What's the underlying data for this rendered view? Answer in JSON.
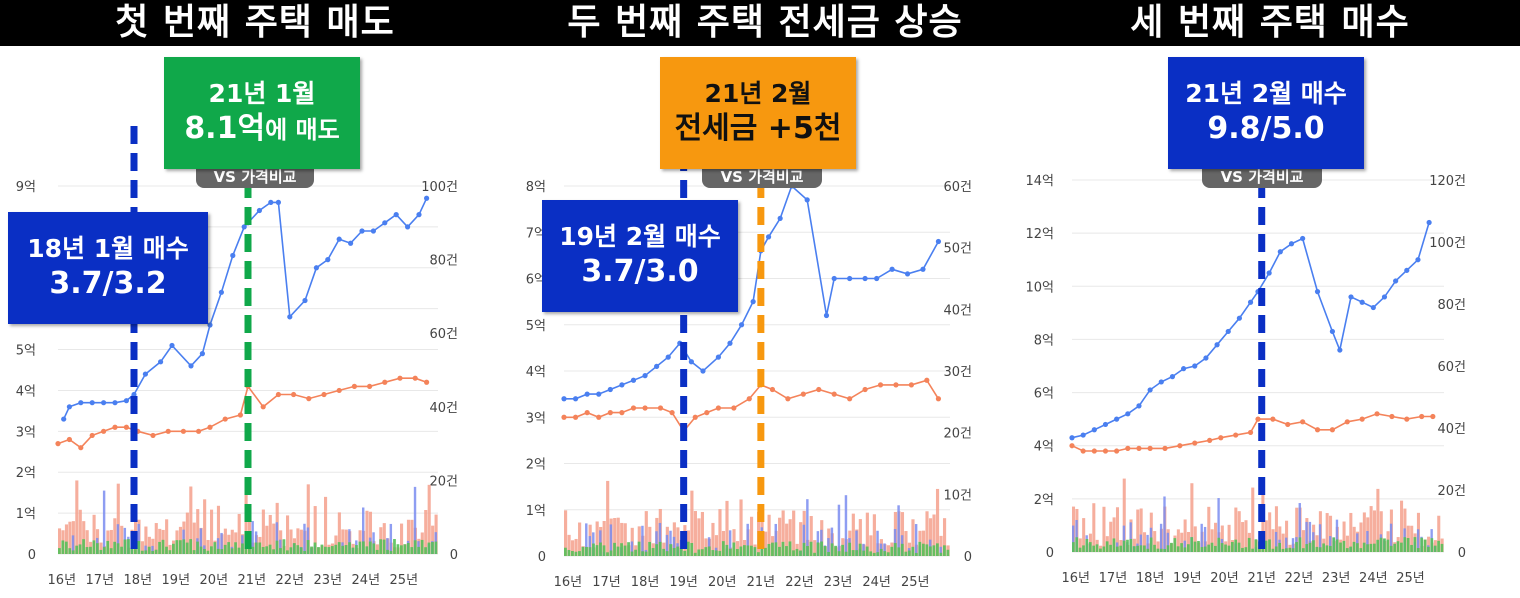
{
  "colors": {
    "title_bg": "#000000",
    "blue_box": "#0a2fc4",
    "green_box": "#10a84a",
    "orange_box": "#f7980f",
    "price_line": "#4a7ff0",
    "jeonse_line": "#f4835a",
    "vol_red": "#f4a08c",
    "vol_blue": "#7a8cf0",
    "vol_green": "#58c05a",
    "grid": "#e8e8e8"
  },
  "panels": [
    {
      "title": "첫 번째 주택 매도",
      "pill_text": "VS 가격비교",
      "callouts": [
        {
          "line1": "18년 1월 매수",
          "line2": "3.7/3.2",
          "line2_small": "",
          "color": "blue"
        },
        {
          "line1": "21년 1월",
          "line2": "8.1억",
          "line2_small": "에 매도",
          "color": "green"
        }
      ]
    },
    {
      "title": "두 번째 주택 전세금 상승",
      "pill_text": "VS 가격비교",
      "callouts": [
        {
          "line1": "19년 2월 매수",
          "line2": "3.7/3.0",
          "line2_small": "",
          "color": "blue"
        },
        {
          "line1": "21년 2월",
          "line2": "전세금 +5천",
          "line2_small": "",
          "color": "orange"
        }
      ]
    },
    {
      "title": "세 번째 주택 매수",
      "pill_text": "VS 가격비교",
      "callouts": [
        {
          "line1": "21년 2월 매수",
          "line2": "9.8/5.0",
          "line2_small": "",
          "color": "blue"
        }
      ]
    }
  ],
  "chart_data": [
    {
      "type": "line",
      "x_labels": [
        "16년",
        "17년",
        "18년",
        "19년",
        "20년",
        "21년",
        "22년",
        "23년",
        "24년",
        "25년"
      ],
      "y_left_ticks": [
        "0",
        "1억",
        "2억",
        "3억",
        "4억",
        "5억",
        "6억",
        "7억",
        "8억",
        "9억"
      ],
      "y_left_range": [
        0,
        9
      ],
      "y_right_ticks": [
        "0",
        "20건",
        "40건",
        "60건",
        "80건",
        "100건"
      ],
      "y_right_range": [
        0,
        100
      ],
      "markers": [
        {
          "x": 2018.0,
          "color": "blue"
        },
        {
          "x": 2021.0,
          "color": "green"
        }
      ],
      "series": [
        {
          "role": "price",
          "x": [
            2016.15,
            2016.3,
            2016.6,
            2016.9,
            2017.2,
            2017.5,
            2017.8,
            2018.0,
            2018.3,
            2018.7,
            2019.0,
            2019.5,
            2019.8,
            2020.0,
            2020.3,
            2020.6,
            2020.9,
            2021.0,
            2021.3,
            2021.6,
            2021.8,
            2022.1,
            2022.5,
            2022.8,
            2023.1,
            2023.4,
            2023.7,
            2024.0,
            2024.3,
            2024.6,
            2024.9,
            2025.2,
            2025.5,
            2025.7
          ],
          "y": [
            3.3,
            3.6,
            3.7,
            3.7,
            3.7,
            3.7,
            3.75,
            3.9,
            4.4,
            4.7,
            5.1,
            4.6,
            4.9,
            5.6,
            6.4,
            7.3,
            8.0,
            8.1,
            8.4,
            8.6,
            8.6,
            5.8,
            6.2,
            7.0,
            7.2,
            7.7,
            7.6,
            7.9,
            7.9,
            8.1,
            8.3,
            8.0,
            8.3,
            8.7
          ]
        },
        {
          "role": "jeonse",
          "x": [
            2016.0,
            2016.3,
            2016.6,
            2016.9,
            2017.2,
            2017.5,
            2017.8,
            2018.1,
            2018.5,
            2018.9,
            2019.3,
            2019.7,
            2020.0,
            2020.4,
            2020.8,
            2021.0,
            2021.4,
            2021.8,
            2022.2,
            2022.6,
            2023.0,
            2023.4,
            2023.8,
            2024.2,
            2024.6,
            2025.0,
            2025.4,
            2025.7
          ],
          "y": [
            2.7,
            2.8,
            2.6,
            2.9,
            3.0,
            3.1,
            3.1,
            3.0,
            2.9,
            3.0,
            3.0,
            3.0,
            3.1,
            3.3,
            3.4,
            4.1,
            3.6,
            3.9,
            3.9,
            3.8,
            3.9,
            4.0,
            4.1,
            4.1,
            4.2,
            4.3,
            4.3,
            4.2
          ]
        }
      ]
    },
    {
      "type": "line",
      "x_labels": [
        "16년",
        "17년",
        "18년",
        "19년",
        "20년",
        "21년",
        "22년",
        "23년",
        "24년",
        "25년"
      ],
      "y_left_ticks": [
        "0",
        "1억",
        "2억",
        "3억",
        "4억",
        "5억",
        "6억",
        "7억",
        "8억"
      ],
      "y_left_range": [
        0,
        8
      ],
      "y_right_ticks": [
        "0",
        "10건",
        "20건",
        "30건",
        "40건",
        "50건",
        "60건"
      ],
      "y_right_range": [
        0,
        60
      ],
      "markers": [
        {
          "x": 2019.1,
          "color": "blue"
        },
        {
          "x": 2021.1,
          "color": "orange"
        }
      ],
      "series": [
        {
          "role": "price",
          "x": [
            2016.0,
            2016.3,
            2016.6,
            2016.9,
            2017.2,
            2017.5,
            2017.8,
            2018.1,
            2018.4,
            2018.7,
            2019.0,
            2019.3,
            2019.6,
            2020.0,
            2020.3,
            2020.6,
            2020.9,
            2021.1,
            2021.3,
            2021.6,
            2021.9,
            2022.3,
            2022.8,
            2023.0,
            2023.4,
            2023.8,
            2024.1,
            2024.5,
            2024.9,
            2025.3,
            2025.7
          ],
          "y": [
            3.4,
            3.4,
            3.5,
            3.5,
            3.6,
            3.7,
            3.8,
            3.9,
            4.1,
            4.3,
            4.6,
            4.2,
            4.0,
            4.3,
            4.6,
            5.0,
            5.5,
            6.6,
            6.9,
            7.3,
            8.0,
            7.7,
            5.2,
            6.0,
            6.0,
            6.0,
            6.0,
            6.2,
            6.1,
            6.2,
            6.8
          ]
        },
        {
          "role": "jeonse",
          "x": [
            2016.0,
            2016.3,
            2016.6,
            2016.9,
            2017.2,
            2017.5,
            2017.8,
            2018.1,
            2018.5,
            2018.8,
            2019.1,
            2019.4,
            2019.7,
            2020.0,
            2020.4,
            2020.8,
            2021.1,
            2021.4,
            2021.8,
            2022.2,
            2022.6,
            2023.0,
            2023.4,
            2023.8,
            2024.2,
            2024.6,
            2025.0,
            2025.4,
            2025.7
          ],
          "y": [
            3.0,
            3.0,
            3.1,
            3.0,
            3.1,
            3.1,
            3.2,
            3.2,
            3.2,
            3.1,
            2.7,
            3.0,
            3.1,
            3.2,
            3.2,
            3.4,
            3.7,
            3.6,
            3.4,
            3.5,
            3.6,
            3.5,
            3.4,
            3.6,
            3.7,
            3.7,
            3.7,
            3.8,
            3.4
          ]
        }
      ]
    },
    {
      "type": "line",
      "x_labels": [
        "16년",
        "17년",
        "18년",
        "19년",
        "20년",
        "21년",
        "22년",
        "23년",
        "24년",
        "25년"
      ],
      "y_left_ticks": [
        "0",
        "2억",
        "4억",
        "6억",
        "8억",
        "10억",
        "12억",
        "14억"
      ],
      "y_left_range": [
        0,
        14
      ],
      "y_right_ticks": [
        "0",
        "20건",
        "40건",
        "60건",
        "80건",
        "100건",
        "120건"
      ],
      "y_right_range": [
        0,
        120
      ],
      "markers": [
        {
          "x": 2021.1,
          "color": "blue"
        }
      ],
      "series": [
        {
          "role": "price",
          "x": [
            2016.0,
            2016.3,
            2016.6,
            2016.9,
            2017.2,
            2017.5,
            2017.8,
            2018.1,
            2018.4,
            2018.7,
            2019.0,
            2019.3,
            2019.6,
            2019.9,
            2020.2,
            2020.5,
            2020.8,
            2021.0,
            2021.3,
            2021.6,
            2021.9,
            2022.2,
            2022.6,
            2023.0,
            2023.2,
            2023.5,
            2023.8,
            2024.1,
            2024.4,
            2024.7,
            2025.0,
            2025.3,
            2025.6
          ],
          "y": [
            4.3,
            4.4,
            4.6,
            4.8,
            5.0,
            5.2,
            5.5,
            6.1,
            6.4,
            6.6,
            6.9,
            7.0,
            7.3,
            7.8,
            8.3,
            8.8,
            9.4,
            9.8,
            10.5,
            11.3,
            11.6,
            11.8,
            9.8,
            8.3,
            7.6,
            9.6,
            9.4,
            9.2,
            9.6,
            10.2,
            10.6,
            11.0,
            12.4
          ]
        },
        {
          "role": "jeonse",
          "x": [
            2016.0,
            2016.3,
            2016.6,
            2016.9,
            2017.2,
            2017.5,
            2017.8,
            2018.1,
            2018.5,
            2018.9,
            2019.3,
            2019.7,
            2020.0,
            2020.4,
            2020.8,
            2021.0,
            2021.4,
            2021.8,
            2022.2,
            2022.6,
            2023.0,
            2023.4,
            2023.8,
            2024.2,
            2024.6,
            2025.0,
            2025.4,
            2025.7
          ],
          "y": [
            4.0,
            3.8,
            3.8,
            3.8,
            3.8,
            3.9,
            3.9,
            3.9,
            3.9,
            4.0,
            4.1,
            4.2,
            4.3,
            4.4,
            4.5,
            5.0,
            5.0,
            4.8,
            4.9,
            4.6,
            4.6,
            4.9,
            5.0,
            5.2,
            5.1,
            5.0,
            5.1,
            5.1
          ]
        }
      ]
    }
  ]
}
